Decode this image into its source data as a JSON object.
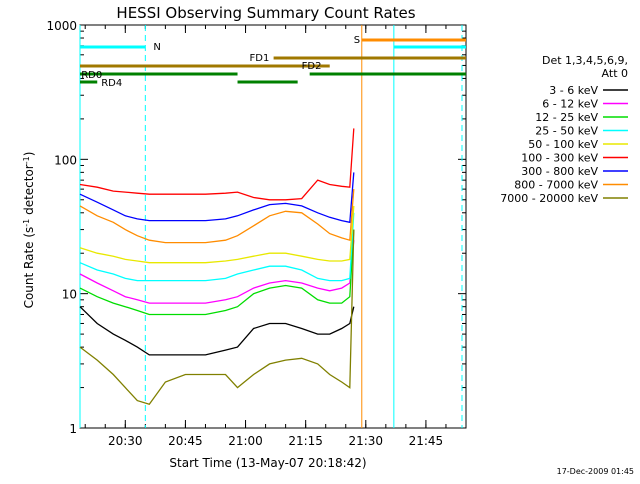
{
  "stamp": "17-Dec-2009 01:45",
  "chart_data": {
    "type": "line",
    "title": "HESSI Observing Summary Count Rates",
    "xlabel": "Start Time (13-May-07 20:18:42)",
    "ylabel_main": "Count Rate (s",
    "ylabel_sup1": "-1",
    "ylabel_mid": " detector",
    "ylabel_sup2": "-1",
    "ylabel_end": ")",
    "yscale": "log",
    "ylim": [
      1,
      1000
    ],
    "xlim": [
      "20:18:42",
      "21:55:00"
    ],
    "xtick_labels": [
      "20:30",
      "20:45",
      "21:00",
      "21:15",
      "21:30",
      "21:45"
    ],
    "ytick_labels": [
      "1",
      "10",
      "100",
      "1000"
    ],
    "legend_header": [
      "Det 1,3,4,5,6,9,",
      "Att 0"
    ],
    "series": [
      {
        "name": "3 - 6 keV",
        "color": "#000000",
        "t": [
          "20:18:42",
          "20:23",
          "20:27",
          "20:30",
          "20:33",
          "20:36",
          "20:40",
          "20:45",
          "20:50",
          "20:55",
          "20:58",
          "21:02",
          "21:06",
          "21:10",
          "21:14",
          "21:18",
          "21:21",
          "21:24",
          "21:26",
          "21:27"
        ],
        "v": [
          8,
          6,
          5,
          4.5,
          4,
          3.5,
          3.5,
          3.5,
          3.5,
          3.8,
          4,
          5.5,
          6,
          6,
          5.5,
          5,
          5,
          5.5,
          6,
          8
        ]
      },
      {
        "name": "6 - 12 keV",
        "color": "#ff00ff",
        "t": [
          "20:18:42",
          "20:23",
          "20:27",
          "20:30",
          "20:33",
          "20:36",
          "20:40",
          "20:45",
          "20:50",
          "20:55",
          "20:58",
          "21:02",
          "21:06",
          "21:10",
          "21:14",
          "21:18",
          "21:21",
          "21:24",
          "21:26",
          "21:27"
        ],
        "v": [
          14,
          12,
          10.5,
          9.5,
          9,
          8.5,
          8.5,
          8.5,
          8.5,
          9,
          9.5,
          11,
          12,
          12.5,
          12,
          11,
          10.5,
          11,
          12,
          25
        ]
      },
      {
        "name": "12 - 25 keV",
        "color": "#00dd00",
        "t": [
          "20:18:42",
          "20:23",
          "20:27",
          "20:30",
          "20:33",
          "20:36",
          "20:40",
          "20:45",
          "20:50",
          "20:55",
          "20:58",
          "21:02",
          "21:06",
          "21:10",
          "21:14",
          "21:18",
          "21:21",
          "21:24",
          "21:26",
          "21:27"
        ],
        "v": [
          11,
          9.5,
          8.5,
          8,
          7.5,
          7,
          7,
          7,
          7,
          7.5,
          8,
          10,
          11,
          11.5,
          11,
          9,
          8.5,
          8.5,
          9.5,
          30
        ]
      },
      {
        "name": "25 - 50 keV",
        "color": "#00ffff",
        "t": [
          "20:18:42",
          "20:23",
          "20:27",
          "20:30",
          "20:33",
          "20:36",
          "20:40",
          "20:45",
          "20:50",
          "20:55",
          "20:58",
          "21:02",
          "21:06",
          "21:10",
          "21:14",
          "21:18",
          "21:21",
          "21:24",
          "21:26",
          "21:27"
        ],
        "v": [
          17,
          15,
          14,
          13,
          12.5,
          12.5,
          12.5,
          12.5,
          12.5,
          13,
          14,
          15,
          16,
          16,
          15,
          13,
          12.5,
          12.5,
          13,
          40
        ]
      },
      {
        "name": "50 - 100 keV",
        "color": "#e8e800",
        "t": [
          "20:18:42",
          "20:23",
          "20:27",
          "20:30",
          "20:33",
          "20:36",
          "20:40",
          "20:45",
          "20:50",
          "20:55",
          "20:58",
          "21:02",
          "21:06",
          "21:10",
          "21:14",
          "21:18",
          "21:21",
          "21:24",
          "21:26",
          "21:27"
        ],
        "v": [
          22,
          20,
          19,
          18,
          17.5,
          17,
          17,
          17,
          17,
          17.5,
          18,
          19,
          20,
          20,
          19,
          18,
          17.5,
          17.5,
          18,
          45
        ]
      },
      {
        "name": "100 - 300 keV",
        "color": "#ff0000",
        "t": [
          "20:18:42",
          "20:23",
          "20:27",
          "20:30",
          "20:33",
          "20:36",
          "20:40",
          "20:45",
          "20:50",
          "20:55",
          "20:58",
          "21:02",
          "21:06",
          "21:10",
          "21:14",
          "21:18",
          "21:21",
          "21:24",
          "21:26",
          "21:27"
        ],
        "v": [
          65,
          62,
          58,
          57,
          56,
          55,
          55,
          55,
          55,
          56,
          57,
          52,
          50,
          50,
          51,
          70,
          65,
          63,
          62,
          170
        ]
      },
      {
        "name": "300 - 800 keV",
        "color": "#0000ff",
        "t": [
          "20:18:42",
          "20:23",
          "20:27",
          "20:30",
          "20:33",
          "20:36",
          "20:40",
          "20:45",
          "20:50",
          "20:55",
          "20:58",
          "21:02",
          "21:06",
          "21:10",
          "21:14",
          "21:18",
          "21:21",
          "21:24",
          "21:26",
          "21:27"
        ],
        "v": [
          55,
          48,
          42,
          38,
          36,
          35,
          35,
          35,
          35,
          36,
          38,
          42,
          46,
          47,
          45,
          40,
          37,
          35,
          34,
          80
        ]
      },
      {
        "name": "800 - 7000 keV",
        "color": "#ff8c00",
        "t": [
          "20:18:42",
          "20:23",
          "20:27",
          "20:30",
          "20:33",
          "20:36",
          "20:40",
          "20:45",
          "20:50",
          "20:55",
          "20:58",
          "21:02",
          "21:06",
          "21:10",
          "21:14",
          "21:18",
          "21:21",
          "21:24",
          "21:26",
          "21:27"
        ],
        "v": [
          45,
          38,
          34,
          30,
          27,
          25,
          24,
          24,
          24,
          25,
          27,
          32,
          38,
          41,
          40,
          33,
          28,
          26,
          25,
          60
        ]
      },
      {
        "name": "7000 - 20000 keV",
        "color": "#808000",
        "t": [
          "20:18:42",
          "20:23",
          "20:27",
          "20:30",
          "20:33",
          "20:36",
          "20:40",
          "20:45",
          "20:50",
          "20:55",
          "20:58",
          "21:02",
          "21:06",
          "21:10",
          "21:14",
          "21:18",
          "21:21",
          "21:24",
          "21:26",
          "21:27"
        ],
        "v": [
          4,
          3.2,
          2.5,
          2,
          1.6,
          1.5,
          2.2,
          2.5,
          2.5,
          2.5,
          2,
          2.5,
          3,
          3.2,
          3.3,
          3,
          2.5,
          2.2,
          2,
          30
        ]
      }
    ],
    "flag_bars": [
      {
        "label": "N",
        "color": "#00ffff",
        "y": 47,
        "segments": [
          [
            "20:18:42",
            "20:35"
          ],
          [
            "21:37",
            "21:55"
          ]
        ]
      },
      {
        "label": "S",
        "color": "#ff8c00",
        "y": 40,
        "segments": [
          [
            "21:29",
            "21:55"
          ]
        ]
      },
      {
        "label": "FD1",
        "color": "#a07800",
        "y": 58,
        "segments": [
          [
            "21:07",
            "21:55"
          ]
        ]
      },
      {
        "label": "FD2",
        "color": "#a07800",
        "y": 66,
        "segments": [
          [
            "20:18:42",
            "21:21"
          ]
        ]
      },
      {
        "label": "RD0",
        "color": "#008000",
        "y": 74,
        "segments": [
          [
            "20:18:42",
            "20:58"
          ],
          [
            "21:16",
            "21:55"
          ]
        ]
      },
      {
        "label": "RD4",
        "color": "#008000",
        "y": 82,
        "segments": [
          [
            "20:18:42",
            "20:23"
          ],
          [
            "20:58",
            "21:13"
          ]
        ]
      }
    ],
    "vlines": [
      {
        "t": "20:18:42",
        "color": "#00ffff",
        "style": "solid"
      },
      {
        "t": "20:35",
        "color": "#00ffff",
        "style": "dashed"
      },
      {
        "t": "21:29",
        "color": "#ff8c00",
        "style": "solid"
      },
      {
        "t": "21:37",
        "color": "#00ffff",
        "style": "solid"
      },
      {
        "t": "21:54",
        "color": "#00ffff",
        "style": "dashed"
      }
    ]
  }
}
